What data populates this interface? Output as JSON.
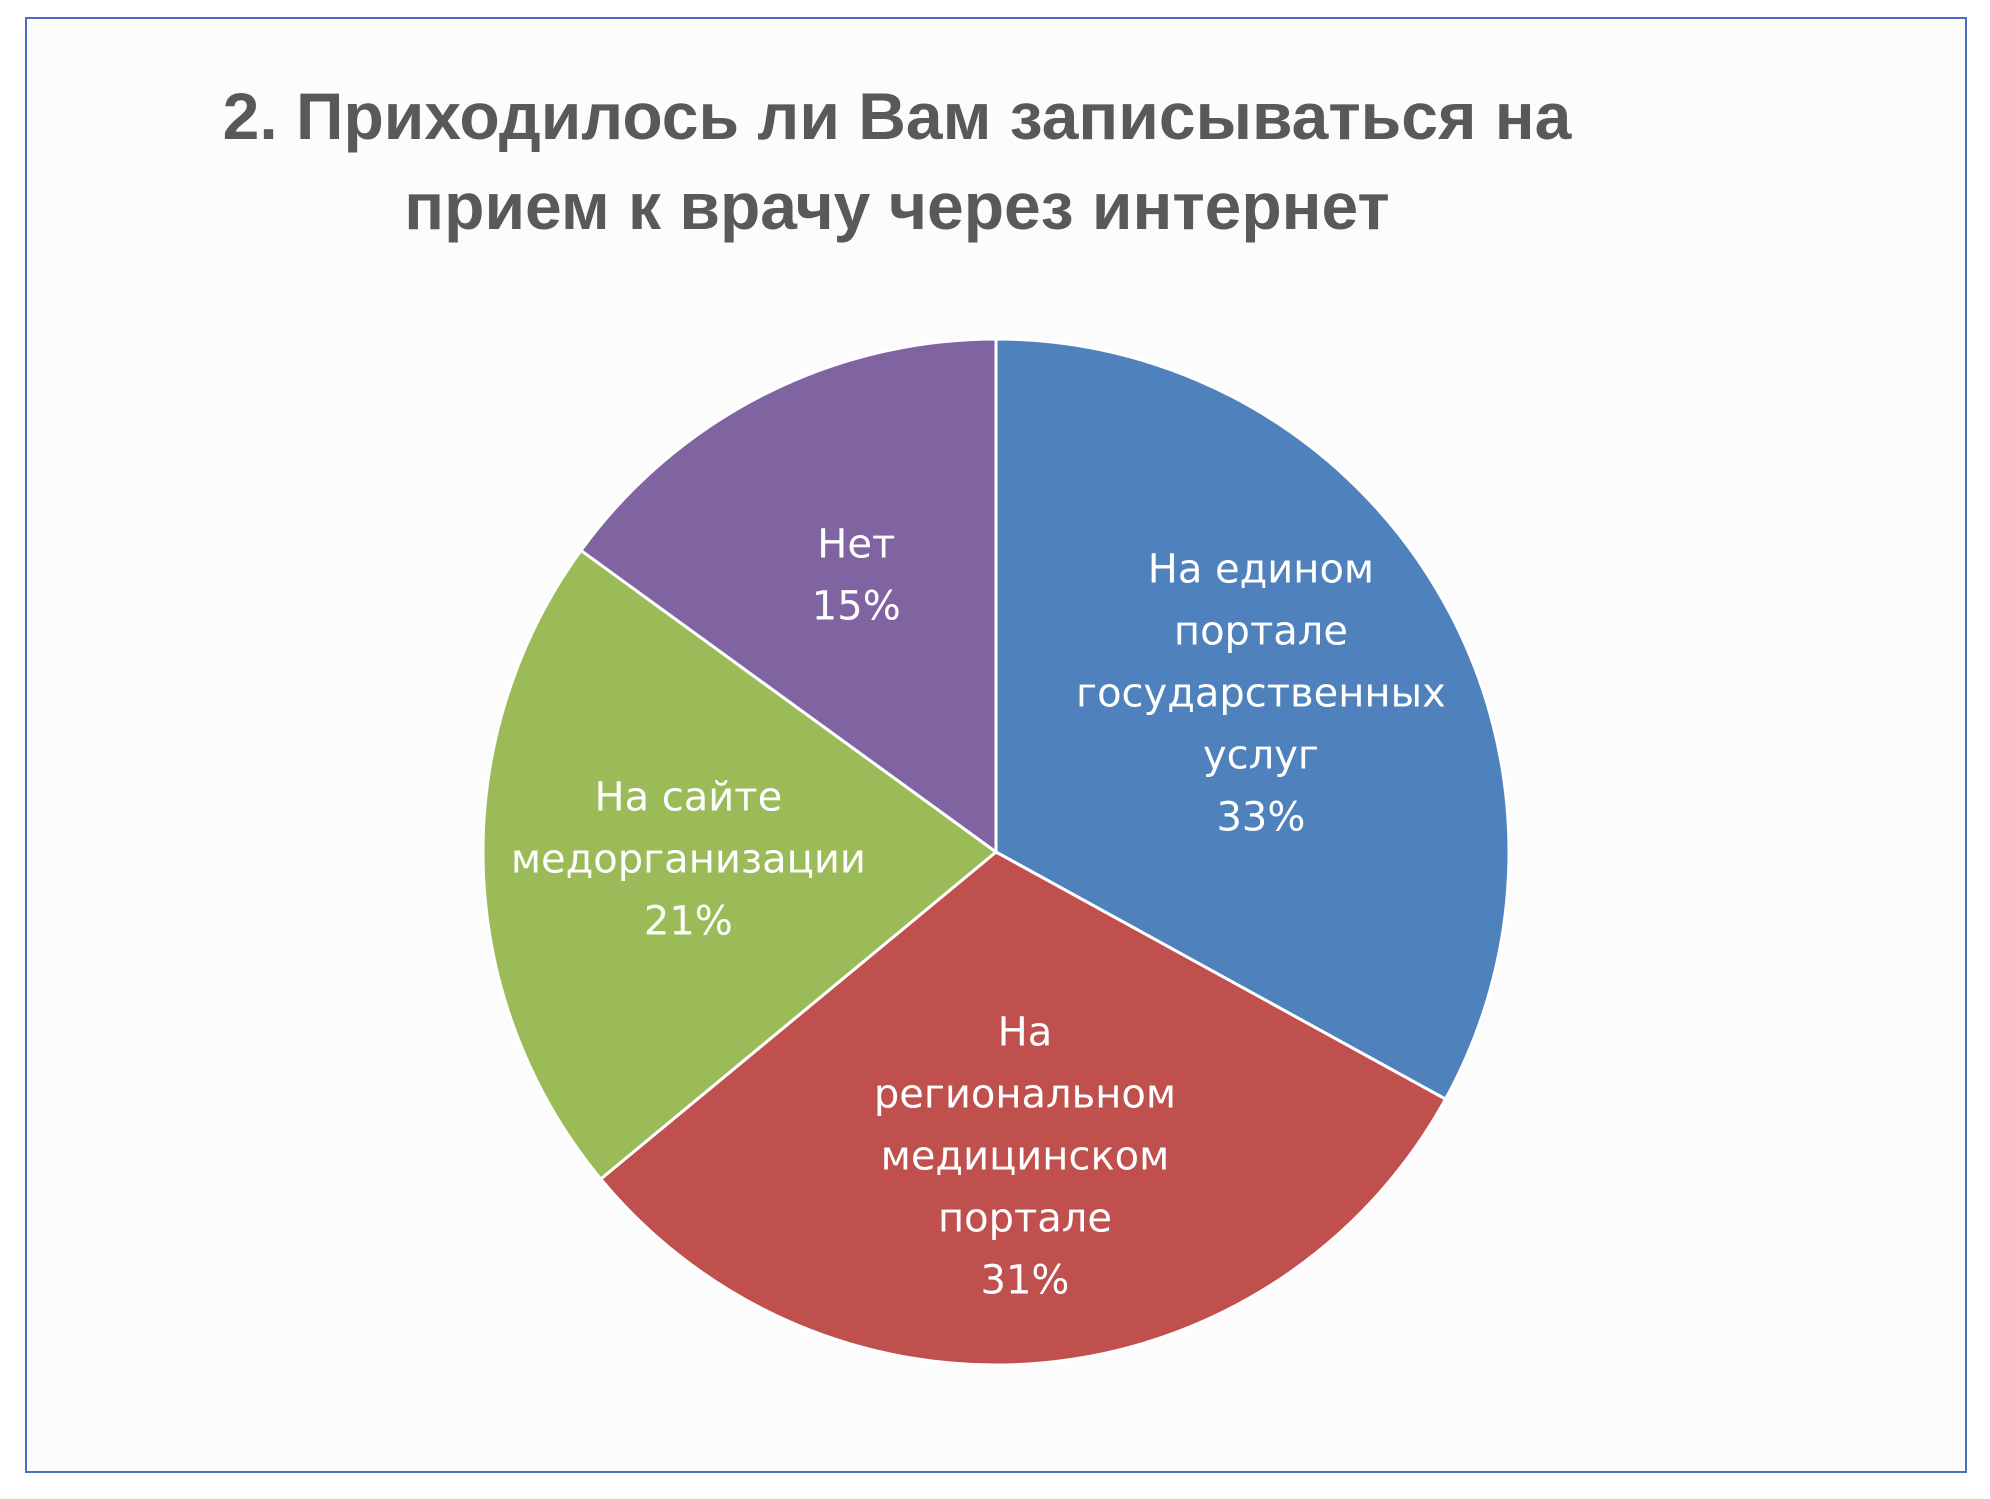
{
  "chart_data": {
    "type": "pie",
    "title": "2. Приходилось ли Вам записываться на прием к врачу через интернет",
    "title_lines": [
      "2. Приходилось ли Вам записываться на",
      "прием к врачу через интернет"
    ],
    "slices": [
      {
        "label_lines": [
          "На едином",
          "портале",
          "государственных",
          "услуг"
        ],
        "percent_label": "33%",
        "value": 33,
        "color": "#4f81bd"
      },
      {
        "label_lines": [
          "На",
          "региональном",
          "медицинском",
          "портале"
        ],
        "percent_label": "31%",
        "value": 31,
        "color": "#c0504d"
      },
      {
        "label_lines": [
          "На сайте",
          "медорганизации"
        ],
        "percent_label": "21%",
        "value": 21,
        "color": "#9bbb59"
      },
      {
        "label_lines": [
          "Нет"
        ],
        "percent_label": "15%",
        "value": 15,
        "color": "#8064a2"
      }
    ],
    "start_angle": "12 o'clock",
    "direction": "clockwise",
    "legend": "none",
    "data_labels": "inside"
  },
  "colors": {
    "frame_border": "#4a6fc2",
    "title_text": "#595959",
    "background": "#fcfcfd"
  }
}
